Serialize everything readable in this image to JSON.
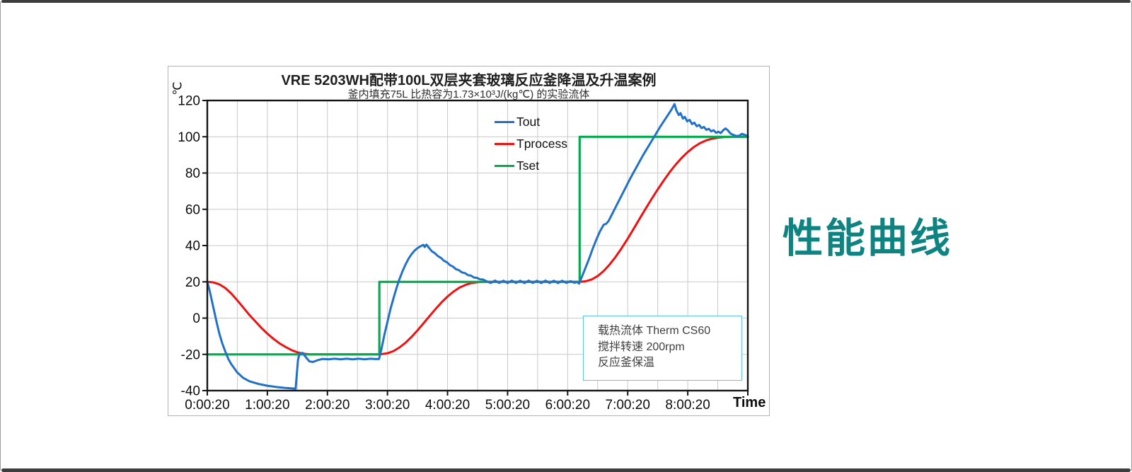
{
  "side_heading": {
    "text": "性能曲线",
    "color": "#0d8482"
  },
  "chart_data": {
    "type": "line",
    "title": "VRE 5203WH配带100L双层夹套玻璃反应釜降温及升温案例",
    "subtitle": "釜内填充75L 比热容为1.73×10³J/(kg℃) 的实验流体",
    "xlabel": "Time",
    "ylabel": "℃",
    "ylim": [
      -40,
      120
    ],
    "x_range_hours": [
      0,
      9
    ],
    "grid": true,
    "grid_x_step_hours": 0.5,
    "grid_y_step": 20,
    "y_ticks": [
      -40,
      -20,
      0,
      20,
      40,
      60,
      80,
      100,
      120
    ],
    "x_tick_hours": [
      0,
      1,
      2,
      3,
      4,
      5,
      6,
      7,
      8
    ],
    "x_tick_labels": [
      "0:00:20",
      "1:00:20",
      "2:00:20",
      "3:00:20",
      "4:00:20",
      "5:00:20",
      "6:00:20",
      "7:00:20",
      "8:00:20"
    ],
    "legend_position": "upper-center-inside",
    "draw_order": [
      1,
      2,
      0
    ],
    "series": [
      {
        "name": "Tout",
        "color": "#2271c8",
        "width": 3,
        "points": [
          [
            0,
            20
          ],
          [
            0.04,
            15
          ],
          [
            0.08,
            9
          ],
          [
            0.12,
            3
          ],
          [
            0.16,
            -3
          ],
          [
            0.2,
            -8.5
          ],
          [
            0.25,
            -14
          ],
          [
            0.3,
            -18.5
          ],
          [
            0.35,
            -22.5
          ],
          [
            0.4,
            -25.5
          ],
          [
            0.5,
            -30
          ],
          [
            0.6,
            -33
          ],
          [
            0.7,
            -34.8
          ],
          [
            0.85,
            -36.3
          ],
          [
            1,
            -37.3
          ],
          [
            1.15,
            -38
          ],
          [
            1.3,
            -38.5
          ],
          [
            1.42,
            -38.8
          ],
          [
            1.47,
            -39
          ],
          [
            1.49,
            -31
          ],
          [
            1.51,
            -23
          ],
          [
            1.54,
            -19.5
          ],
          [
            1.59,
            -19.2
          ],
          [
            1.64,
            -21.5
          ],
          [
            1.7,
            -23.9
          ],
          [
            1.76,
            -24.2
          ],
          [
            1.84,
            -23.2
          ],
          [
            1.92,
            -22.5
          ],
          [
            2.02,
            -22.7
          ],
          [
            2.12,
            -22.4
          ],
          [
            2.22,
            -22.7
          ],
          [
            2.32,
            -22.4
          ],
          [
            2.42,
            -22.7
          ],
          [
            2.52,
            -22.4
          ],
          [
            2.62,
            -22.7
          ],
          [
            2.72,
            -22.4
          ],
          [
            2.8,
            -22.6
          ],
          [
            2.86,
            -22.5
          ],
          [
            2.9,
            -17
          ],
          [
            2.95,
            -9
          ],
          [
            3,
            -2
          ],
          [
            3.05,
            5
          ],
          [
            3.1,
            11
          ],
          [
            3.15,
            16.5
          ],
          [
            3.2,
            21.5
          ],
          [
            3.25,
            25.8
          ],
          [
            3.3,
            29.5
          ],
          [
            3.35,
            32.7
          ],
          [
            3.4,
            35.2
          ],
          [
            3.45,
            37.2
          ],
          [
            3.5,
            38.6
          ],
          [
            3.55,
            39.6
          ],
          [
            3.6,
            40.4
          ],
          [
            3.62,
            39.2
          ],
          [
            3.65,
            40.5
          ],
          [
            3.69,
            38.8
          ],
          [
            3.74,
            36.8
          ],
          [
            3.79,
            35.8
          ],
          [
            3.84,
            34.2
          ],
          [
            3.89,
            33.2
          ],
          [
            3.94,
            31.6
          ],
          [
            3.99,
            30.8
          ],
          [
            4.04,
            29.2
          ],
          [
            4.09,
            28.4
          ],
          [
            4.14,
            27
          ],
          [
            4.19,
            26.4
          ],
          [
            4.24,
            25.2
          ],
          [
            4.29,
            24.8
          ],
          [
            4.34,
            23.7
          ],
          [
            4.39,
            23.4
          ],
          [
            4.44,
            22.4
          ],
          [
            4.49,
            22.2
          ],
          [
            4.54,
            21.4
          ],
          [
            4.59,
            21.3
          ],
          [
            4.65,
            20.3
          ],
          [
            4.72,
            19.4
          ],
          [
            4.79,
            20.7
          ],
          [
            4.86,
            19.4
          ],
          [
            4.93,
            20.6
          ],
          [
            5,
            19.3
          ],
          [
            5.07,
            20.7
          ],
          [
            5.14,
            19.4
          ],
          [
            5.21,
            20.6
          ],
          [
            5.28,
            19.3
          ],
          [
            5.35,
            20.7
          ],
          [
            5.42,
            19.4
          ],
          [
            5.49,
            20.6
          ],
          [
            5.56,
            19.3
          ],
          [
            5.63,
            20.7
          ],
          [
            5.7,
            19.4
          ],
          [
            5.77,
            20.6
          ],
          [
            5.84,
            19.3
          ],
          [
            5.91,
            20.6
          ],
          [
            5.98,
            19.4
          ],
          [
            6.05,
            20.4
          ],
          [
            6.11,
            19.5
          ],
          [
            6.16,
            19.9
          ],
          [
            6.19,
            19
          ],
          [
            6.24,
            23
          ],
          [
            6.3,
            28
          ],
          [
            6.36,
            33
          ],
          [
            6.42,
            38.5
          ],
          [
            6.48,
            43.5
          ],
          [
            6.54,
            48
          ],
          [
            6.6,
            51.5
          ],
          [
            6.64,
            52
          ],
          [
            6.68,
            53.5
          ],
          [
            6.75,
            58
          ],
          [
            6.85,
            64.5
          ],
          [
            6.95,
            71
          ],
          [
            7.05,
            77.5
          ],
          [
            7.15,
            83.5
          ],
          [
            7.25,
            89.5
          ],
          [
            7.35,
            95
          ],
          [
            7.45,
            100.5
          ],
          [
            7.55,
            106
          ],
          [
            7.65,
            111
          ],
          [
            7.72,
            114.5
          ],
          [
            7.78,
            118
          ],
          [
            7.81,
            114.5
          ],
          [
            7.85,
            112
          ],
          [
            7.88,
            113
          ],
          [
            7.92,
            110
          ],
          [
            7.95,
            111
          ],
          [
            7.99,
            108.5
          ],
          [
            8.03,
            109.3
          ],
          [
            8.07,
            107
          ],
          [
            8.11,
            107.8
          ],
          [
            8.15,
            105.8
          ],
          [
            8.19,
            106.5
          ],
          [
            8.23,
            104.8
          ],
          [
            8.27,
            105.4
          ],
          [
            8.31,
            103.8
          ],
          [
            8.35,
            104.4
          ],
          [
            8.39,
            103
          ],
          [
            8.43,
            103.6
          ],
          [
            8.47,
            102.2
          ],
          [
            8.51,
            102.8
          ],
          [
            8.55,
            102
          ],
          [
            8.59,
            103.6
          ],
          [
            8.63,
            104.6
          ],
          [
            8.67,
            103.4
          ],
          [
            8.71,
            101.8
          ],
          [
            8.76,
            101
          ],
          [
            8.81,
            100.4
          ],
          [
            8.86,
            100.6
          ],
          [
            8.9,
            101.6
          ],
          [
            8.94,
            101.2
          ],
          [
            9,
            100.3
          ]
        ]
      },
      {
        "name": "Tprocess",
        "color": "#f01010",
        "width": 3,
        "points": [
          [
            0,
            20
          ],
          [
            0.1,
            19.7
          ],
          [
            0.2,
            18.6
          ],
          [
            0.3,
            16.6
          ],
          [
            0.4,
            13.5
          ],
          [
            0.5,
            9.8
          ],
          [
            0.6,
            5.8
          ],
          [
            0.7,
            1.8
          ],
          [
            0.8,
            -1.8
          ],
          [
            0.9,
            -5.4
          ],
          [
            1,
            -8.6
          ],
          [
            1.1,
            -11.4
          ],
          [
            1.2,
            -13.9
          ],
          [
            1.3,
            -15.9
          ],
          [
            1.4,
            -17.6
          ],
          [
            1.5,
            -18.9
          ],
          [
            1.6,
            -19.6
          ],
          [
            1.7,
            -20
          ],
          [
            2.87,
            -20
          ],
          [
            3,
            -19.4
          ],
          [
            3.1,
            -18.2
          ],
          [
            3.2,
            -16.2
          ],
          [
            3.3,
            -13.6
          ],
          [
            3.4,
            -10.4
          ],
          [
            3.5,
            -6.8
          ],
          [
            3.6,
            -2.9
          ],
          [
            3.7,
            1.1
          ],
          [
            3.8,
            5
          ],
          [
            3.9,
            8.7
          ],
          [
            4,
            11.9
          ],
          [
            4.1,
            14.6
          ],
          [
            4.2,
            16.8
          ],
          [
            4.3,
            18.3
          ],
          [
            4.4,
            19.3
          ],
          [
            4.5,
            19.8
          ],
          [
            4.6,
            20
          ],
          [
            6.21,
            20
          ],
          [
            6.3,
            20.3
          ],
          [
            6.4,
            21.3
          ],
          [
            6.5,
            23.2
          ],
          [
            6.6,
            26
          ],
          [
            6.7,
            29.6
          ],
          [
            6.8,
            33.8
          ],
          [
            6.9,
            38.6
          ],
          [
            7,
            43.8
          ],
          [
            7.1,
            49.3
          ],
          [
            7.2,
            54.9
          ],
          [
            7.3,
            60.4
          ],
          [
            7.4,
            65.8
          ],
          [
            7.5,
            71
          ],
          [
            7.6,
            75.9
          ],
          [
            7.7,
            80.5
          ],
          [
            7.8,
            84.7
          ],
          [
            7.9,
            88.4
          ],
          [
            8,
            91.6
          ],
          [
            8.1,
            94.3
          ],
          [
            8.2,
            96.4
          ],
          [
            8.3,
            97.9
          ],
          [
            8.4,
            98.9
          ],
          [
            8.5,
            99.5
          ],
          [
            8.6,
            99.8
          ],
          [
            8.75,
            100
          ],
          [
            9,
            100
          ]
        ]
      },
      {
        "name": "Tset",
        "color": "#00ac4e",
        "width": 3.2,
        "points": [
          [
            0,
            -20
          ],
          [
            2.865,
            -20
          ],
          [
            2.865,
            20
          ],
          [
            6.2,
            20
          ],
          [
            6.2,
            100
          ],
          [
            9,
            100
          ]
        ]
      }
    ],
    "annotation_box": {
      "border_color": "#5bc6e8",
      "lines": [
        "载热流体 Therm CS60",
        "搅拌转速 200rpm",
        "反应釜保温"
      ]
    }
  }
}
